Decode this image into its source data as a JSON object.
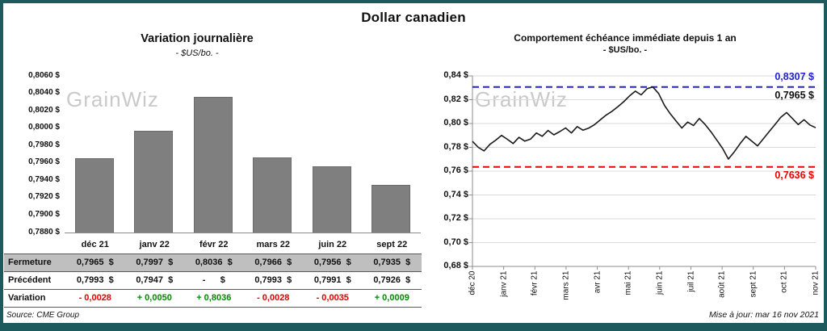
{
  "page": {
    "title": "Dollar canadien",
    "watermark": "GrainWiz",
    "footer": {
      "source": "Source: CME Group",
      "updated": "Mise à jour: mar 16 nov 2021"
    }
  },
  "colors": {
    "frame": "#1d5a5e",
    "bar": "#7f7f7f",
    "table_shade": "#bfbfbf",
    "negative": "#e00000",
    "positive": "#008a00",
    "high_line": "#2222cc",
    "low_line": "#e80000",
    "price_line": "#1a1a1a"
  },
  "chart_data": [
    {
      "type": "bar",
      "title": "Variation journalière",
      "subtitle": "- $US/bo. -",
      "categories": [
        "déc 21",
        "janv 22",
        "févr 22",
        "mars 22",
        "juin 22",
        "sept 22"
      ],
      "values": [
        0.7965,
        0.7997,
        0.8036,
        0.7966,
        0.7956,
        0.7935
      ],
      "ylim": [
        0.788,
        0.806
      ],
      "bar_color": "#7f7f7f",
      "grid": false,
      "yticks": [
        {
          "value": 0.806,
          "label": "0,8060 $"
        },
        {
          "value": 0.804,
          "label": "0,8040 $"
        },
        {
          "value": 0.802,
          "label": "0,8020 $"
        },
        {
          "value": 0.8,
          "label": "0,8000 $"
        },
        {
          "value": 0.798,
          "label": "0,7980 $"
        },
        {
          "value": 0.796,
          "label": "0,7960 $"
        },
        {
          "value": 0.794,
          "label": "0,7940 $"
        },
        {
          "value": 0.792,
          "label": "0,7920 $"
        },
        {
          "value": 0.79,
          "label": "0,7900 $"
        },
        {
          "value": 0.788,
          "label": "0,7880 $"
        }
      ],
      "table": {
        "rows": [
          {
            "label": "Fermeture",
            "shaded": true,
            "values": [
              "0,7965  $",
              "0,7997  $",
              "0,8036  $",
              "0,7966  $",
              "0,7956  $",
              "0,7935  $"
            ]
          },
          {
            "label": "Précédent",
            "shaded": false,
            "values": [
              "0,7993  $",
              "0,7947  $",
              "-      $",
              "0,7993  $",
              "0,7991  $",
              "0,7926  $"
            ]
          },
          {
            "label": "Variation",
            "shaded": false,
            "values": [
              "- 0,0028",
              "+ 0,0050",
              "+ 0,8036",
              "- 0,0028",
              "- 0,0035",
              "+ 0,0009"
            ],
            "value_signs": [
              "neg",
              "pos",
              "pos",
              "neg",
              "neg",
              "pos"
            ]
          }
        ]
      }
    },
    {
      "type": "line",
      "title": "Comportement échéance immédiate depuis 1 an",
      "subtitle": "- $US/bo. -",
      "ylim": [
        0.68,
        0.84
      ],
      "grid": true,
      "line_color": "#1a1a1a",
      "yticks": [
        {
          "value": 0.84,
          "label": "0,84 $"
        },
        {
          "value": 0.82,
          "label": "0,82 $"
        },
        {
          "value": 0.8,
          "label": "0,80 $"
        },
        {
          "value": 0.78,
          "label": "0,78 $"
        },
        {
          "value": 0.76,
          "label": "0,76 $"
        },
        {
          "value": 0.74,
          "label": "0,74 $"
        },
        {
          "value": 0.72,
          "label": "0,72 $"
        },
        {
          "value": 0.7,
          "label": "0,70 $"
        },
        {
          "value": 0.68,
          "label": "0,68 $"
        }
      ],
      "x_labels": [
        "déc 20",
        "janv 21",
        "févr 21",
        "mars 21",
        "avr 21",
        "mai 21",
        "juin 21",
        "juil 21",
        "août 21",
        "sept 21",
        "oct 21",
        "nov 21"
      ],
      "reference_lines": [
        {
          "value": 0.8307,
          "label": "0,8307 $",
          "color": "#2222cc",
          "style": "dashed"
        },
        {
          "value": 0.7636,
          "label": "0,7636 $",
          "color": "#e80000",
          "style": "dashed"
        }
      ],
      "last_value": 0.7965,
      "last_value_label": "0,7965 $",
      "series": [
        {
          "name": "Dollar canadien échéance immédiate ($US/bo.)",
          "x_note": "environ hebdomadaire, déc 2020 à nov 2021",
          "values": [
            0.785,
            0.78,
            0.777,
            0.7825,
            0.786,
            0.79,
            0.7868,
            0.7832,
            0.7884,
            0.7852,
            0.787,
            0.7921,
            0.7893,
            0.7942,
            0.7905,
            0.7932,
            0.7963,
            0.7921,
            0.7974,
            0.7944,
            0.7962,
            0.7991,
            0.8032,
            0.8072,
            0.8103,
            0.8142,
            0.8183,
            0.8232,
            0.8272,
            0.8241,
            0.8292,
            0.8307,
            0.8252,
            0.8153,
            0.8082,
            0.8021,
            0.7962,
            0.8012,
            0.7983,
            0.8042,
            0.7992,
            0.7931,
            0.7862,
            0.7791,
            0.7702,
            0.7762,
            0.7831,
            0.7892,
            0.7852,
            0.7812,
            0.7872,
            0.7932,
            0.7991,
            0.8052,
            0.8092,
            0.8042,
            0.7991,
            0.8032,
            0.7988,
            0.7965
          ]
        }
      ]
    }
  ]
}
